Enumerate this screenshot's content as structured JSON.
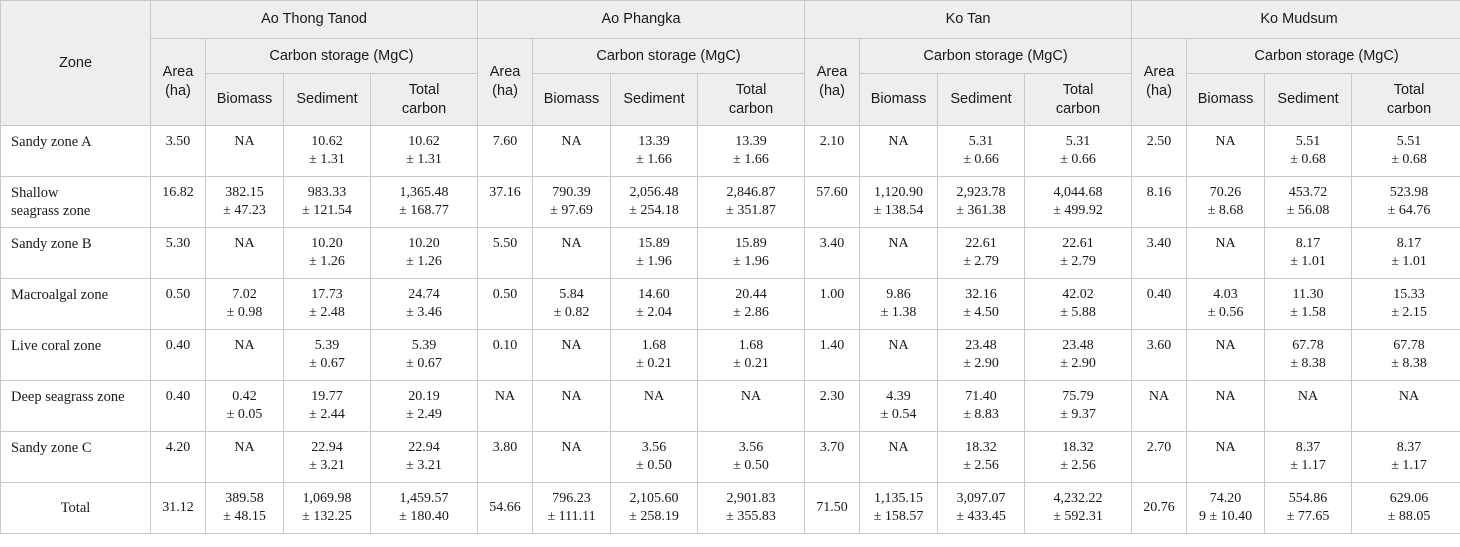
{
  "header": {
    "zone_label": "Zone",
    "area_label": [
      "Area",
      "(ha)"
    ],
    "carbon_label": "Carbon storage (MgC)",
    "biomass_label": "Biomass",
    "sediment_label": "Sediment",
    "total_carbon_label": [
      "Total",
      "carbon"
    ],
    "sites": [
      "Ao Thong Tanod",
      "Ao Phangka",
      "Ko Tan",
      "Ko Mudsum"
    ]
  },
  "rows": [
    {
      "zone": [
        "Sandy zone A"
      ],
      "sites": [
        {
          "area": "3.50",
          "biomass": [
            "NA"
          ],
          "sediment": [
            "10.62",
            "± 1.31"
          ],
          "total": [
            "10.62",
            "± 1.31"
          ]
        },
        {
          "area": "7.60",
          "biomass": [
            "NA"
          ],
          "sediment": [
            "13.39",
            "± 1.66"
          ],
          "total": [
            "13.39",
            "± 1.66"
          ]
        },
        {
          "area": "2.10",
          "biomass": [
            "NA"
          ],
          "sediment": [
            "5.31",
            "± 0.66"
          ],
          "total": [
            "5.31",
            "± 0.66"
          ]
        },
        {
          "area": "2.50",
          "biomass": [
            "NA"
          ],
          "sediment": [
            "5.51",
            "± 0.68"
          ],
          "total": [
            "5.51",
            "± 0.68"
          ]
        }
      ]
    },
    {
      "zone": [
        "Shallow",
        "seagrass zone"
      ],
      "sites": [
        {
          "area": "16.82",
          "biomass": [
            "382.15",
            "± 47.23"
          ],
          "sediment": [
            "983.33",
            "± 121.54"
          ],
          "total": [
            "1,365.48",
            "± 168.77"
          ]
        },
        {
          "area": "37.16",
          "biomass": [
            "790.39",
            "± 97.69"
          ],
          "sediment": [
            "2,056.48",
            "± 254.18"
          ],
          "total": [
            "2,846.87",
            "± 351.87"
          ]
        },
        {
          "area": "57.60",
          "biomass": [
            "1,120.90",
            "± 138.54"
          ],
          "sediment": [
            "2,923.78",
            "± 361.38"
          ],
          "total": [
            "4,044.68",
            "± 499.92"
          ]
        },
        {
          "area": "8.16",
          "biomass": [
            "70.26",
            "± 8.68"
          ],
          "sediment": [
            "453.72",
            "± 56.08"
          ],
          "total": [
            "523.98",
            "± 64.76"
          ]
        }
      ]
    },
    {
      "zone": [
        "Sandy zone B"
      ],
      "sites": [
        {
          "area": "5.30",
          "biomass": [
            "NA"
          ],
          "sediment": [
            "10.20",
            "± 1.26"
          ],
          "total": [
            "10.20",
            "± 1.26"
          ]
        },
        {
          "area": "5.50",
          "biomass": [
            "NA"
          ],
          "sediment": [
            "15.89",
            "± 1.96"
          ],
          "total": [
            "15.89",
            "± 1.96"
          ]
        },
        {
          "area": "3.40",
          "biomass": [
            "NA"
          ],
          "sediment": [
            "22.61",
            "± 2.79"
          ],
          "total": [
            "22.61",
            "± 2.79"
          ]
        },
        {
          "area": "3.40",
          "biomass": [
            "NA"
          ],
          "sediment": [
            "8.17",
            "± 1.01"
          ],
          "total": [
            "8.17",
            "± 1.01"
          ]
        }
      ]
    },
    {
      "zone": [
        "Macroalgal zone"
      ],
      "sites": [
        {
          "area": "0.50",
          "biomass": [
            "7.02",
            "± 0.98"
          ],
          "sediment": [
            "17.73",
            "± 2.48"
          ],
          "total": [
            "24.74",
            "± 3.46"
          ]
        },
        {
          "area": "0.50",
          "biomass": [
            "5.84",
            "± 0.82"
          ],
          "sediment": [
            "14.60",
            "± 2.04"
          ],
          "total": [
            "20.44",
            "± 2.86"
          ]
        },
        {
          "area": "1.00",
          "biomass": [
            "9.86",
            "± 1.38"
          ],
          "sediment": [
            "32.16",
            "± 4.50"
          ],
          "total": [
            "42.02",
            "± 5.88"
          ]
        },
        {
          "area": "0.40",
          "biomass": [
            "4.03",
            "± 0.56"
          ],
          "sediment": [
            "11.30",
            "± 1.58"
          ],
          "total": [
            "15.33",
            "± 2.15"
          ]
        }
      ]
    },
    {
      "zone": [
        "Live coral zone"
      ],
      "sites": [
        {
          "area": "0.40",
          "biomass": [
            "NA"
          ],
          "sediment": [
            "5.39",
            "± 0.67"
          ],
          "total": [
            "5.39",
            "± 0.67"
          ]
        },
        {
          "area": "0.10",
          "biomass": [
            "NA"
          ],
          "sediment": [
            "1.68",
            "± 0.21"
          ],
          "total": [
            "1.68",
            "± 0.21"
          ]
        },
        {
          "area": "1.40",
          "biomass": [
            "NA"
          ],
          "sediment": [
            "23.48",
            "± 2.90"
          ],
          "total": [
            "23.48",
            "± 2.90"
          ]
        },
        {
          "area": "3.60",
          "biomass": [
            "NA"
          ],
          "sediment": [
            "67.78",
            "± 8.38"
          ],
          "total": [
            "67.78",
            "± 8.38"
          ]
        }
      ]
    },
    {
      "zone": [
        "Deep seagrass zone"
      ],
      "sites": [
        {
          "area": "0.40",
          "biomass": [
            "0.42",
            "± 0.05"
          ],
          "sediment": [
            "19.77",
            "± 2.44"
          ],
          "total": [
            "20.19",
            "± 2.49"
          ]
        },
        {
          "area": "NA",
          "biomass": [
            "NA"
          ],
          "sediment": [
            "NA"
          ],
          "total": [
            "NA"
          ]
        },
        {
          "area": "2.30",
          "biomass": [
            "4.39",
            "± 0.54"
          ],
          "sediment": [
            "71.40",
            "± 8.83"
          ],
          "total": [
            "75.79",
            "± 9.37"
          ]
        },
        {
          "area": "NA",
          "biomass": [
            "NA"
          ],
          "sediment": [
            "NA"
          ],
          "total": [
            "NA"
          ]
        }
      ]
    },
    {
      "zone": [
        "Sandy zone C"
      ],
      "sites": [
        {
          "area": "4.20",
          "biomass": [
            "NA"
          ],
          "sediment": [
            "22.94",
            "± 3.21"
          ],
          "total": [
            "22.94",
            "± 3.21"
          ]
        },
        {
          "area": "3.80",
          "biomass": [
            "NA"
          ],
          "sediment": [
            "3.56",
            "± 0.50"
          ],
          "total": [
            "3.56",
            "± 0.50"
          ]
        },
        {
          "area": "3.70",
          "biomass": [
            "NA"
          ],
          "sediment": [
            "18.32",
            "± 2.56"
          ],
          "total": [
            "18.32",
            "± 2.56"
          ]
        },
        {
          "area": "2.70",
          "biomass": [
            "NA"
          ],
          "sediment": [
            "8.37",
            "± 1.17"
          ],
          "total": [
            "8.37",
            "± 1.17"
          ]
        }
      ]
    },
    {
      "zone": [
        "Total"
      ],
      "is_total": true,
      "sites": [
        {
          "area": "31.12",
          "biomass": [
            "389.58",
            "± 48.15"
          ],
          "sediment": [
            "1,069.98",
            "± 132.25"
          ],
          "total": [
            "1,459.57",
            "± 180.40"
          ]
        },
        {
          "area": "54.66",
          "biomass": [
            "796.23",
            "± 111.11"
          ],
          "sediment": [
            "2,105.60",
            "± 258.19"
          ],
          "total": [
            "2,901.83",
            "± 355.83"
          ]
        },
        {
          "area": "71.50",
          "biomass": [
            "1,135.15",
            "± 158.57"
          ],
          "sediment": [
            "3,097.07",
            "± 433.45"
          ],
          "total": [
            "4,232.22",
            "± 592.31"
          ]
        },
        {
          "area": "20.76",
          "biomass": [
            "74.20",
            "9 ± 10.40"
          ],
          "sediment": [
            "554.86",
            "± 77.65"
          ],
          "total": [
            "629.06",
            "± 88.05"
          ]
        }
      ]
    }
  ]
}
